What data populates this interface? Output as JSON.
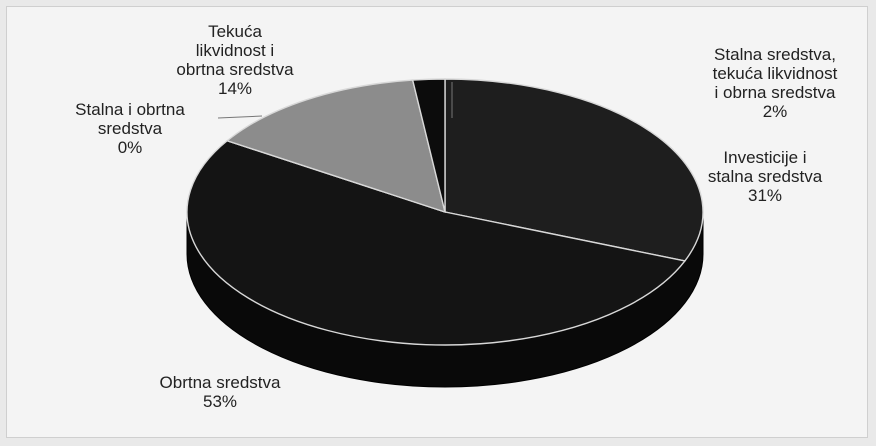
{
  "chart_data": {
    "type": "pie",
    "title": "",
    "series": [
      {
        "values": [
          31,
          53,
          0,
          14,
          2
        ],
        "labels": [
          "Investicije i stalna sredstva",
          "Obrtna sredstva",
          "Stalna i obrtna sredstva",
          "Tekuća likvidnost i obrtna sredstva",
          "Stalna sredstva, tekuća likvidnost i obrna sredstva"
        ]
      }
    ],
    "data_labels": [
      {
        "lines": [
          "Investicije i",
          "stalna sredstva",
          "31%"
        ]
      },
      {
        "lines": [
          "Obrtna sredstva",
          "53%"
        ]
      },
      {
        "lines": [
          "Stalna i obrtna",
          "sredstva",
          "0%"
        ]
      },
      {
        "lines": [
          "Tekuća",
          "likvidnost i",
          "obrtna sredstva",
          "14%"
        ]
      },
      {
        "lines": [
          "Stalna sredstva,",
          "tekuća likvidnost",
          "i obrna sredstva",
          "2%"
        ]
      }
    ],
    "slice_colors": [
      "#1e1e1e",
      "#141414",
      "#3a3a3a",
      "#8c8c8c",
      "#0c0c0c"
    ],
    "legend": "none",
    "style": "3d"
  }
}
